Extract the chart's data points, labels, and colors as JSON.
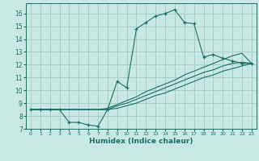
{
  "xlabel": "Humidex (Indice chaleur)",
  "xlim": [
    -0.5,
    23.5
  ],
  "ylim": [
    7,
    16.8
  ],
  "yticks": [
    7,
    8,
    9,
    10,
    11,
    12,
    13,
    14,
    15,
    16
  ],
  "xticks": [
    0,
    1,
    2,
    3,
    4,
    5,
    6,
    7,
    8,
    9,
    10,
    11,
    12,
    13,
    14,
    15,
    16,
    17,
    18,
    19,
    20,
    21,
    22,
    23
  ],
  "bg_color": "#c8e8e4",
  "line_color": "#1a6e68",
  "grid_color": "#a8ccc8",
  "lines": [
    {
      "x": [
        0,
        1,
        2,
        3,
        4,
        5,
        6,
        7,
        8,
        9,
        10,
        11,
        12,
        13,
        14,
        15,
        16,
        17,
        18,
        19,
        20,
        21,
        22,
        23
      ],
      "y": [
        8.5,
        8.5,
        8.5,
        8.5,
        7.5,
        7.5,
        7.3,
        7.2,
        8.5,
        10.7,
        10.2,
        14.8,
        15.3,
        15.8,
        16.0,
        16.3,
        15.3,
        15.2,
        12.6,
        12.8,
        12.5,
        12.3,
        12.1,
        12.1
      ],
      "marker": "+"
    },
    {
      "x": [
        0,
        1,
        2,
        3,
        4,
        5,
        6,
        7,
        8,
        9,
        10,
        11,
        12,
        13,
        14,
        15,
        16,
        17,
        18,
        19,
        20,
        21,
        22,
        23
      ],
      "y": [
        8.5,
        8.5,
        8.5,
        8.5,
        8.5,
        8.5,
        8.5,
        8.5,
        8.6,
        8.9,
        9.2,
        9.5,
        9.9,
        10.2,
        10.5,
        10.8,
        11.2,
        11.5,
        11.8,
        12.1,
        12.4,
        12.7,
        12.9,
        12.1
      ],
      "marker": null
    },
    {
      "x": [
        0,
        1,
        2,
        3,
        4,
        5,
        6,
        7,
        8,
        9,
        10,
        11,
        12,
        13,
        14,
        15,
        16,
        17,
        18,
        19,
        20,
        21,
        22,
        23
      ],
      "y": [
        8.5,
        8.5,
        8.5,
        8.5,
        8.5,
        8.5,
        8.5,
        8.5,
        8.5,
        8.8,
        9.0,
        9.3,
        9.6,
        9.9,
        10.2,
        10.5,
        10.8,
        11.1,
        11.4,
        11.6,
        11.9,
        12.1,
        12.2,
        12.1
      ],
      "marker": null
    },
    {
      "x": [
        0,
        1,
        2,
        3,
        4,
        5,
        6,
        7,
        8,
        9,
        10,
        11,
        12,
        13,
        14,
        15,
        16,
        17,
        18,
        19,
        20,
        21,
        22,
        23
      ],
      "y": [
        8.5,
        8.5,
        8.5,
        8.5,
        8.5,
        8.5,
        8.5,
        8.5,
        8.5,
        8.6,
        8.8,
        9.0,
        9.3,
        9.6,
        9.8,
        10.1,
        10.4,
        10.7,
        11.0,
        11.2,
        11.5,
        11.7,
        11.9,
        12.1
      ],
      "marker": null
    }
  ]
}
